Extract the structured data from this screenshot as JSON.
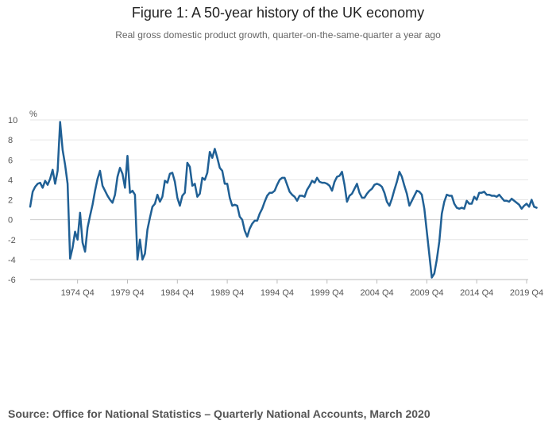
{
  "title": "Figure 1: A 50-year history of the UK economy",
  "subtitle": "Real gross domestic product growth, quarter-on-the-same-quarter a year ago",
  "source": "Source: Office for National Statistics – Quarterly National Accounts, March 2020",
  "colors": {
    "line": "#206095",
    "grid": "#e6e6e6",
    "axis": "#bbbbbb"
  },
  "chart_data": {
    "type": "line",
    "title": "Figure 1: A 50-year history of the UK economy",
    "subtitle": "Real gross domestic product growth, quarter-on-the-same-quarter a year ago",
    "ylabel": "%",
    "ylim": [
      -6,
      10
    ],
    "yticks": [
      -6,
      -4,
      -2,
      0,
      2,
      4,
      6,
      8,
      10
    ],
    "x_range": [
      "1970 Q1",
      "2019 Q4"
    ],
    "xticks": [
      "1974 Q4",
      "1979 Q4",
      "1984 Q4",
      "1989 Q4",
      "1994 Q4",
      "1999 Q4",
      "2004 Q4",
      "2009 Q4",
      "2014 Q4",
      "2019 Q4"
    ],
    "grid": true,
    "legend": "none",
    "series": [
      {
        "values": [
          1.3,
          2.8,
          3.3,
          3.6,
          3.7,
          3.2,
          3.9,
          3.5,
          4.1,
          5.0,
          3.6,
          4.9,
          9.8,
          7.0,
          5.5,
          3.6,
          -3.9,
          -2.8,
          -1.2,
          -2.0,
          0.7,
          -2.3,
          -3.2,
          -0.8,
          0.4,
          1.5,
          2.9,
          4.1,
          4.9,
          3.4,
          2.9,
          2.4,
          2.0,
          1.7,
          2.5,
          4.3,
          5.2,
          4.6,
          3.2,
          6.4,
          2.7,
          2.9,
          2.5,
          -4.0,
          -2.0,
          -4.0,
          -3.4,
          -1.0,
          0.2,
          1.3,
          1.6,
          2.5,
          1.8,
          2.3,
          3.9,
          3.7,
          4.6,
          4.7,
          3.8,
          2.2,
          1.4,
          2.4,
          2.7,
          5.7,
          5.3,
          3.4,
          3.6,
          2.3,
          2.6,
          4.2,
          4.0,
          4.7,
          6.8,
          6.2,
          7.1,
          6.2,
          5.2,
          4.9,
          3.6,
          3.6,
          2.2,
          1.4,
          1.5,
          1.4,
          0.3,
          0.0,
          -1.1,
          -1.7,
          -0.9,
          -0.4,
          -0.1,
          -0.1,
          0.6,
          1.1,
          1.8,
          2.4,
          2.7,
          2.7,
          2.9,
          3.5,
          4.0,
          4.2,
          4.2,
          3.5,
          2.8,
          2.5,
          2.3,
          1.9,
          2.4,
          2.4,
          2.3,
          3.0,
          3.4,
          3.9,
          3.7,
          4.2,
          3.8,
          3.7,
          3.7,
          3.6,
          3.4,
          2.9,
          3.8,
          4.3,
          4.4,
          4.8,
          3.5,
          1.8,
          2.4,
          2.6,
          3.1,
          3.6,
          2.7,
          2.2,
          2.2,
          2.6,
          2.9,
          3.1,
          3.5,
          3.6,
          3.5,
          3.3,
          2.7,
          1.8,
          1.4,
          2.1,
          3.0,
          3.8,
          4.8,
          4.3,
          3.4,
          2.6,
          1.4,
          1.9,
          2.4,
          2.9,
          2.8,
          2.5,
          1.1,
          -1.2,
          -3.5,
          -5.8,
          -5.4,
          -4.0,
          -2.2,
          0.6,
          1.8,
          2.5,
          2.4,
          2.4,
          1.6,
          1.2,
          1.1,
          1.2,
          1.1,
          1.9,
          1.6,
          1.6,
          2.3,
          2.0,
          2.7,
          2.7,
          2.8,
          2.5,
          2.5,
          2.4,
          2.4,
          2.3,
          2.5,
          2.2,
          1.9,
          1.9,
          1.8,
          2.1,
          1.9,
          1.7,
          1.5,
          1.1,
          1.4,
          1.6,
          1.3,
          2.0,
          1.3,
          1.2
        ]
      }
    ]
  }
}
